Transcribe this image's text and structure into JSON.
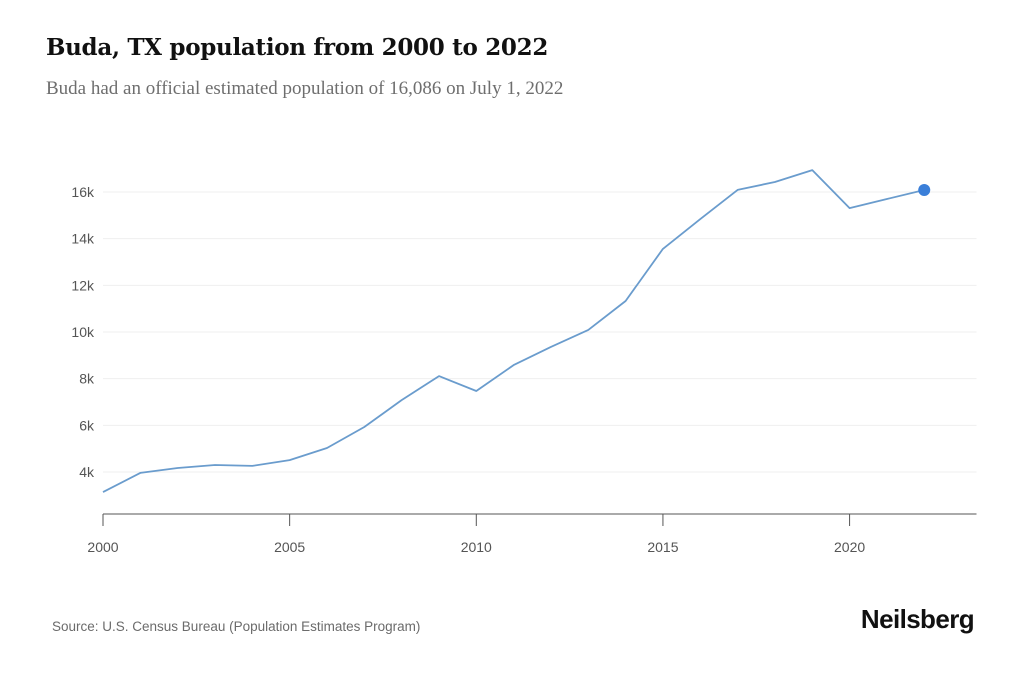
{
  "header": {
    "title": "Buda, TX population from 2000 to 2022",
    "subtitle": "Buda had an official estimated population of 16,086 on July 1, 2022"
  },
  "footer": {
    "source": "Source: U.S. Census Bureau (Population Estimates Program)",
    "brand": "Neilsberg"
  },
  "colors": {
    "line": "#6a9ccd",
    "highlight_point": "#3a7fd9",
    "grid": "#efefef",
    "axis": "#555555",
    "tick_label": "#555555"
  },
  "chart_data": {
    "type": "line",
    "title": "Buda, TX population from 2000 to 2022",
    "xlabel": "",
    "ylabel": "",
    "x": [
      2000,
      2001,
      2002,
      2003,
      2004,
      2005,
      2006,
      2007,
      2008,
      2009,
      2010,
      2011,
      2012,
      2013,
      2014,
      2015,
      2016,
      2017,
      2018,
      2019,
      2020,
      2021,
      2022
    ],
    "series": [
      {
        "name": "Population",
        "values": [
          3140,
          3960,
          4170,
          4300,
          4260,
          4510,
          5030,
          5930,
          7080,
          8110,
          7470,
          8580,
          9360,
          10090,
          11330,
          13560,
          14840,
          16090,
          16430,
          16940,
          15310,
          15700,
          16086
        ]
      }
    ],
    "highlight": {
      "x": 2022,
      "value": 16086
    },
    "xlim": [
      2000,
      2023.4
    ],
    "ylim": [
      2200,
      17500
    ],
    "xticks": [
      2000,
      2005,
      2010,
      2015,
      2020
    ],
    "xtick_labels": [
      "2000",
      "2005",
      "2010",
      "2015",
      "2020"
    ],
    "yticks": [
      4000,
      6000,
      8000,
      10000,
      12000,
      14000,
      16000
    ],
    "ytick_labels": [
      "4k",
      "6k",
      "8k",
      "10k",
      "12k",
      "14k",
      "16k"
    ],
    "grid": "horizontal",
    "legend": "none"
  }
}
